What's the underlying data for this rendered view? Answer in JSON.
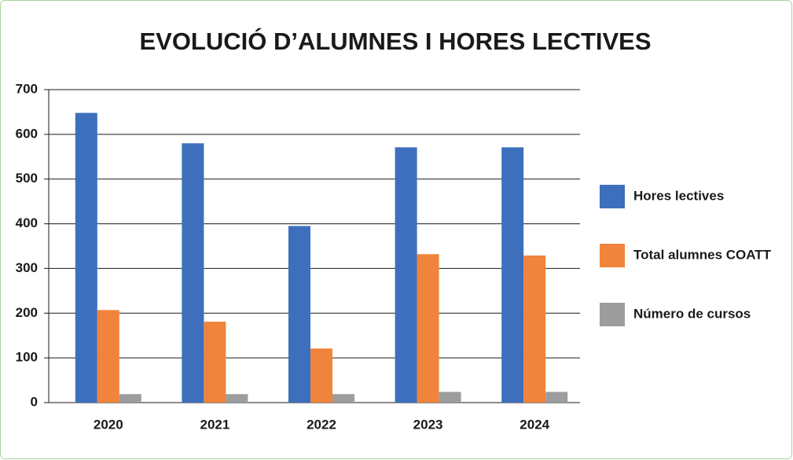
{
  "chart_data": {
    "type": "bar",
    "title": "EVOLUCIÓ D’ALUMNES I HORES LECTIVES",
    "categories": [
      "2020",
      "2021",
      "2022",
      "2023",
      "2024"
    ],
    "series": [
      {
        "name": "Hores lectives",
        "color": "#3d6fbd",
        "values": [
          648,
          580,
          395,
          571,
          571
        ]
      },
      {
        "name": "Total alumnes COATT",
        "color": "#f0843c",
        "values": [
          207,
          181,
          121,
          332,
          329
        ]
      },
      {
        "name": "Número de cursos",
        "color": "#9d9d9d",
        "values": [
          19,
          19,
          19,
          24,
          24
        ]
      }
    ],
    "ylim": [
      0,
      700
    ],
    "yticks": [
      0,
      100,
      200,
      300,
      400,
      500,
      600,
      700
    ],
    "grid": true,
    "legend": "right"
  }
}
